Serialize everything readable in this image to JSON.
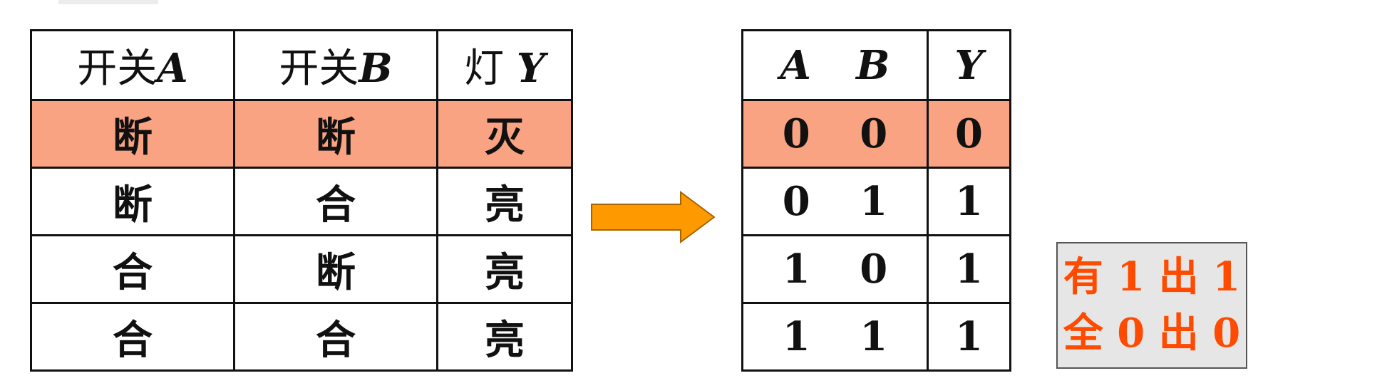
{
  "switch_table": {
    "headers": [
      "开关",
      "A",
      "开关",
      "B",
      "灯",
      "Y"
    ],
    "rows": [
      [
        "断",
        "断",
        "灭"
      ],
      [
        "断",
        "合",
        "亮"
      ],
      [
        "合",
        "断",
        "亮"
      ],
      [
        "合",
        "合",
        "亮"
      ]
    ],
    "highlight_row": 0
  },
  "truth_table": {
    "headers": [
      "A",
      "B",
      "Y"
    ],
    "rows": [
      [
        "0",
        "0",
        "0"
      ],
      [
        "0",
        "1",
        "1"
      ],
      [
        "1",
        "0",
        "1"
      ],
      [
        "1",
        "1",
        "1"
      ]
    ],
    "highlight_row": 0
  },
  "rule": {
    "line1": [
      "有",
      "1",
      "出",
      "1"
    ],
    "line2": [
      "全",
      "0",
      "出",
      "0"
    ]
  },
  "colors": {
    "highlight": "#f9a383",
    "arrow": "#ff9900",
    "rule_text": "#ff4a00",
    "rule_bg": "#e6e6e6"
  }
}
